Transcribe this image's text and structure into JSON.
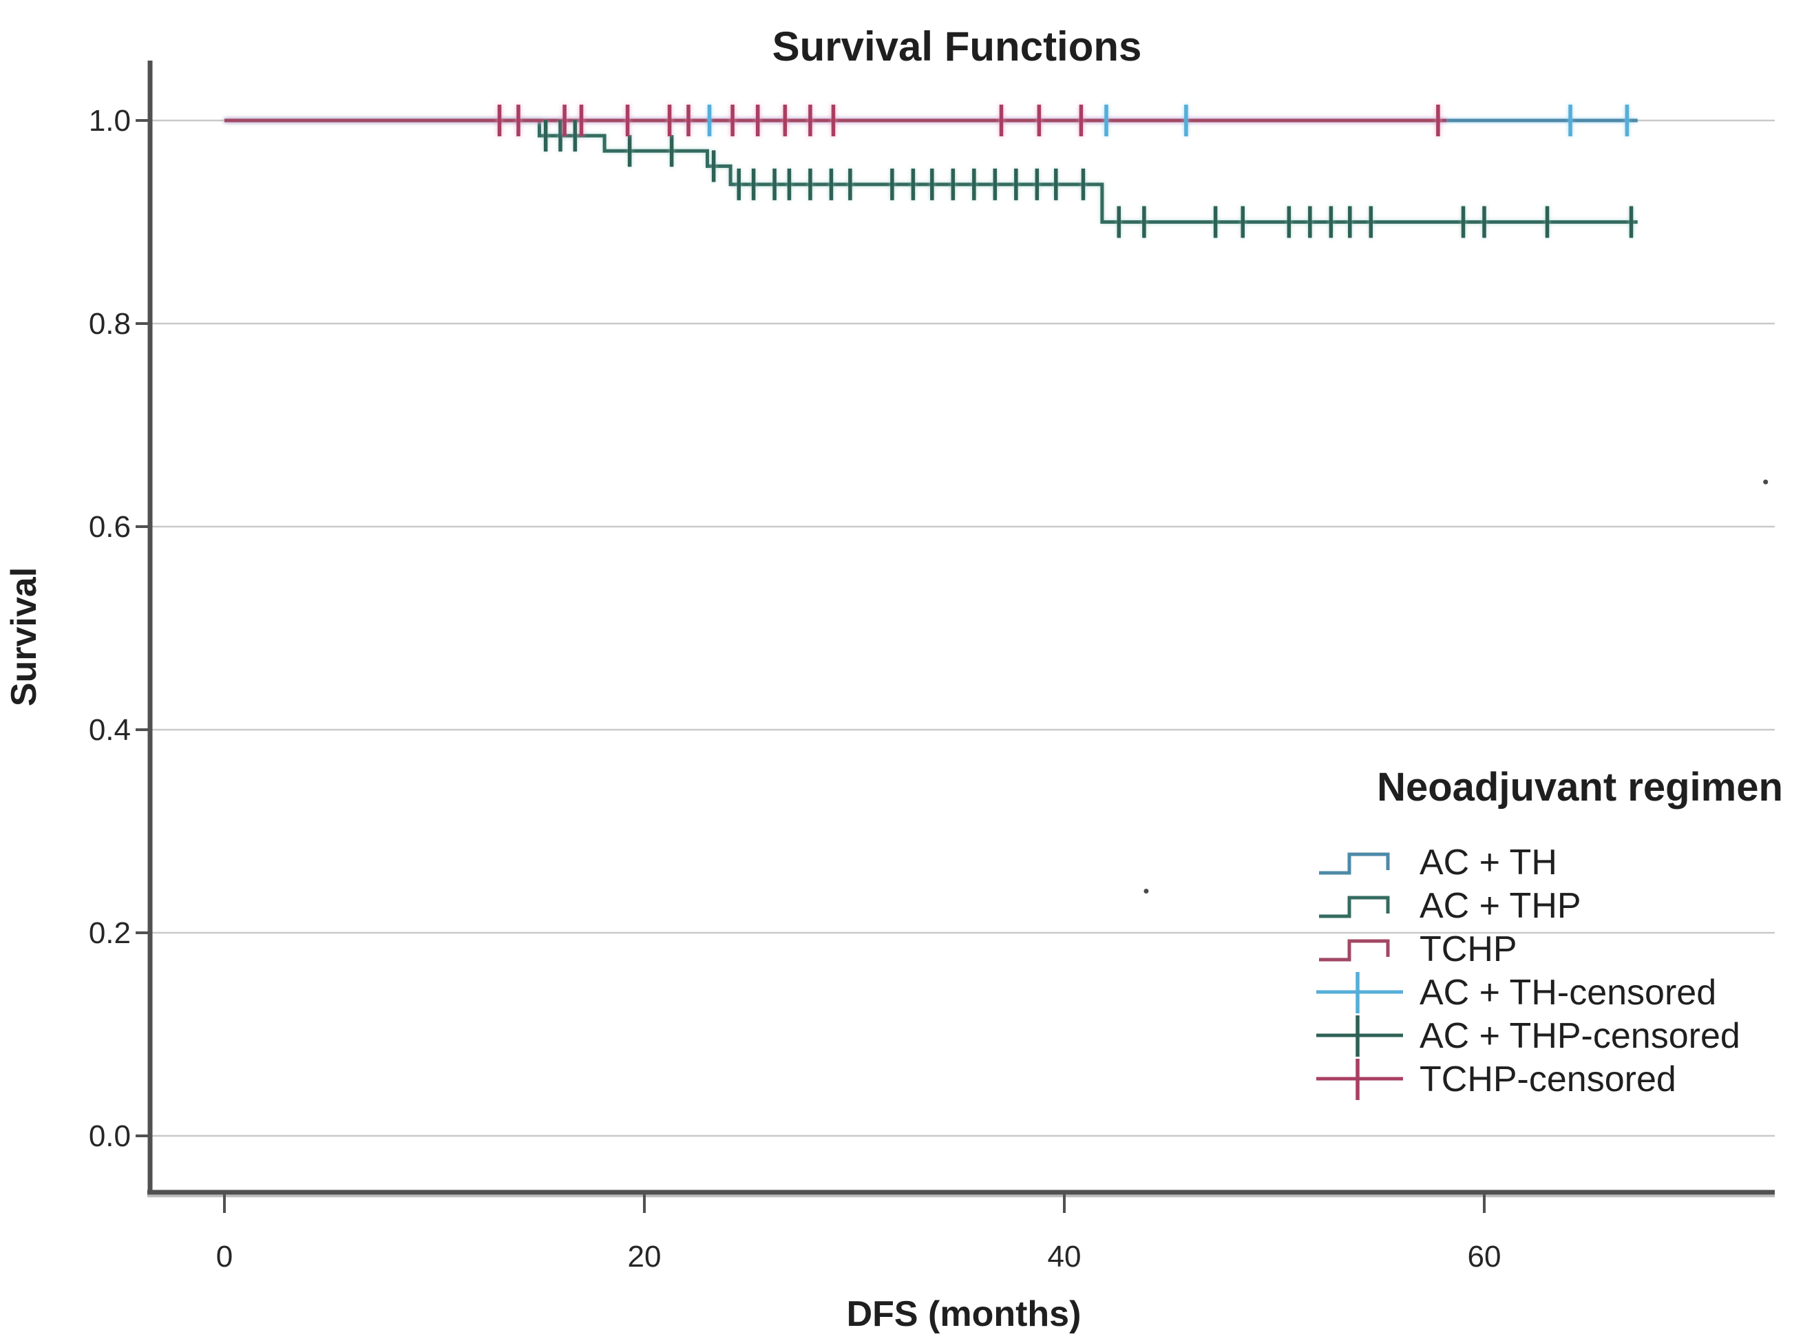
{
  "chart_data": {
    "type": "line",
    "subtype": "kaplan-meier-step-survival",
    "title": "Survival Functions",
    "xlabel": "DFS (months)",
    "ylabel": "Survival",
    "xlim": [
      -3.8,
      73.9
    ],
    "ylim": [
      0.0,
      1.05
    ],
    "grid": "horizontal",
    "xticks": [
      {
        "label": "0",
        "value": 0
      },
      {
        "label": "20",
        "value": 20
      },
      {
        "label": "40",
        "value": 40
      },
      {
        "label": "60",
        "value": 60
      }
    ],
    "yticks": [
      {
        "label": "1.0",
        "value": 1.0
      },
      {
        "label": "0.8",
        "value": 0.8
      },
      {
        "label": "0.6",
        "value": 0.6
      },
      {
        "label": "0.4",
        "value": 0.4
      },
      {
        "label": "0.2",
        "value": 0.2
      },
      {
        "label": "0.0",
        "value": 0.0
      }
    ],
    "legend": {
      "title": "Neoadjuvant regimen",
      "position": "right-bottom-inside",
      "items": [
        {
          "label": "AC + TH",
          "swatch": "step-line",
          "color": "#4e89a8"
        },
        {
          "label": "AC + THP",
          "swatch": "step-line",
          "color": "#356b60"
        },
        {
          "label": "TCHP",
          "swatch": "step-line",
          "color": "#a24864"
        },
        {
          "label": "AC + TH-censored",
          "swatch": "plus-mark",
          "color": "#55aed8"
        },
        {
          "label": "AC + THP-censored",
          "swatch": "plus-mark",
          "color": "#2e6156"
        },
        {
          "label": "TCHP-censored",
          "swatch": "plus-mark",
          "color": "#a83f62"
        }
      ]
    },
    "series": [
      {
        "name": "AC + THP",
        "color": "#356b60",
        "censor_color": "#2e6156",
        "glow_class": "glow-teal",
        "steps": [
          [
            0,
            1.0
          ],
          [
            15.0,
            1.0
          ],
          [
            15.0,
            0.985
          ],
          [
            18.1,
            0.985
          ],
          [
            18.1,
            0.97
          ],
          [
            23.0,
            0.97
          ],
          [
            23.0,
            0.955
          ],
          [
            24.1,
            0.955
          ],
          [
            24.1,
            0.937
          ],
          [
            41.8,
            0.937
          ],
          [
            41.8,
            0.9
          ],
          [
            67.3,
            0.9
          ]
        ],
        "censors": [
          [
            15.3,
            0.985
          ],
          [
            16.0,
            0.985
          ],
          [
            16.7,
            0.985
          ],
          [
            19.3,
            0.97
          ],
          [
            21.3,
            0.97
          ],
          [
            23.3,
            0.955
          ],
          [
            24.5,
            0.937
          ],
          [
            25.2,
            0.937
          ],
          [
            26.2,
            0.937
          ],
          [
            26.9,
            0.937
          ],
          [
            27.9,
            0.937
          ],
          [
            28.9,
            0.937
          ],
          [
            29.8,
            0.937
          ],
          [
            31.8,
            0.937
          ],
          [
            32.8,
            0.937
          ],
          [
            33.7,
            0.937
          ],
          [
            34.7,
            0.937
          ],
          [
            35.7,
            0.937
          ],
          [
            36.7,
            0.937
          ],
          [
            37.7,
            0.937
          ],
          [
            38.7,
            0.937
          ],
          [
            39.6,
            0.937
          ],
          [
            40.9,
            0.937
          ],
          [
            42.6,
            0.9
          ],
          [
            43.8,
            0.9
          ],
          [
            47.2,
            0.9
          ],
          [
            48.5,
            0.9
          ],
          [
            50.7,
            0.9
          ],
          [
            51.7,
            0.9
          ],
          [
            52.7,
            0.9
          ],
          [
            53.6,
            0.9
          ],
          [
            54.6,
            0.9
          ],
          [
            59.0,
            0.9
          ],
          [
            60.0,
            0.9
          ],
          [
            63.0,
            0.9
          ],
          [
            67.0,
            0.9
          ]
        ]
      },
      {
        "name": "AC + TH",
        "color": "#4e89a8",
        "censor_color": "#55aed8",
        "glow_class": "glow-blue",
        "steps": [
          [
            0,
            1.0
          ],
          [
            67.3,
            1.0
          ]
        ],
        "censors": [
          [
            23.1,
            1.0
          ],
          [
            42.0,
            1.0
          ],
          [
            45.8,
            1.0
          ],
          [
            64.1,
            1.0
          ],
          [
            66.8,
            1.0
          ]
        ]
      },
      {
        "name": "TCHP",
        "color": "#a24864",
        "censor_color": "#a83f62",
        "glow_class": "glow-crimson",
        "steps": [
          [
            0,
            1.0
          ],
          [
            58.2,
            1.0
          ]
        ],
        "censors": [
          [
            13.1,
            1.0
          ],
          [
            14.0,
            1.0
          ],
          [
            16.2,
            1.0
          ],
          [
            17.0,
            1.0
          ],
          [
            19.2,
            1.0
          ],
          [
            21.2,
            1.0
          ],
          [
            22.1,
            1.0
          ],
          [
            24.2,
            1.0
          ],
          [
            25.4,
            1.0
          ],
          [
            26.7,
            1.0
          ],
          [
            27.9,
            1.0
          ],
          [
            29.0,
            1.0
          ],
          [
            37.0,
            1.0
          ],
          [
            38.8,
            1.0
          ],
          [
            40.8,
            1.0
          ],
          [
            57.8,
            1.0
          ]
        ]
      }
    ],
    "specks": [
      [
        73.4,
        0.644
      ],
      [
        43.9,
        0.241
      ]
    ]
  }
}
